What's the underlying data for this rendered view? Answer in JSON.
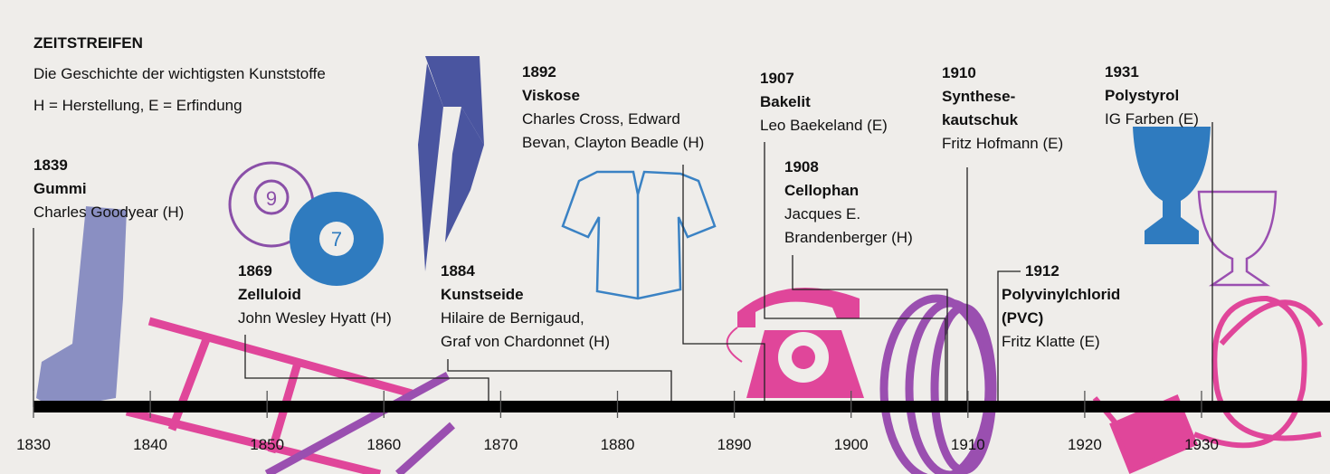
{
  "header": {
    "title": "ZEITSTREIFEN",
    "subtitle": "Die Geschichte der wichtigsten Kunststoffe",
    "legend": "H = Herstellung, E = Erfindung"
  },
  "events": [
    {
      "year": "1839",
      "name": "Gummi",
      "person": "Charles Goodyear (H)"
    },
    {
      "year": "1869",
      "name": "Zelluloid",
      "person": "John Wesley Hyatt (H)"
    },
    {
      "year": "1884",
      "name": "Kunstseide",
      "person": "Hilaire de Bernigaud,\nGraf von Chardonnet (H)"
    },
    {
      "year": "1892",
      "name": "Viskose",
      "person": "Charles Cross, Edward\nBevan, Clayton Beadle (H)"
    },
    {
      "year": "1907",
      "name": "Bakelit",
      "person": "Leo Baekeland (E)"
    },
    {
      "year": "1908",
      "name": "Cellophan",
      "person": "Jacques E.\nBrandenberger (H)"
    },
    {
      "year": "1910",
      "name": "Synthese-\nkautschuk",
      "person": "Fritz Hofmann (E)"
    },
    {
      "year": "1912",
      "name": "Polyvinylchlorid\n(PVC)",
      "person": "Fritz Klatte (E)"
    },
    {
      "year": "1931",
      "name": "Polystyrol",
      "person": "IG Farben (E)"
    }
  ],
  "axis": {
    "ticks": [
      "1830",
      "1840",
      "1850",
      "1860",
      "1870",
      "1880",
      "1890",
      "1900",
      "1910",
      "1920",
      "1930"
    ]
  },
  "icons": {
    "billiard_balls": [
      "9",
      "7"
    ]
  }
}
